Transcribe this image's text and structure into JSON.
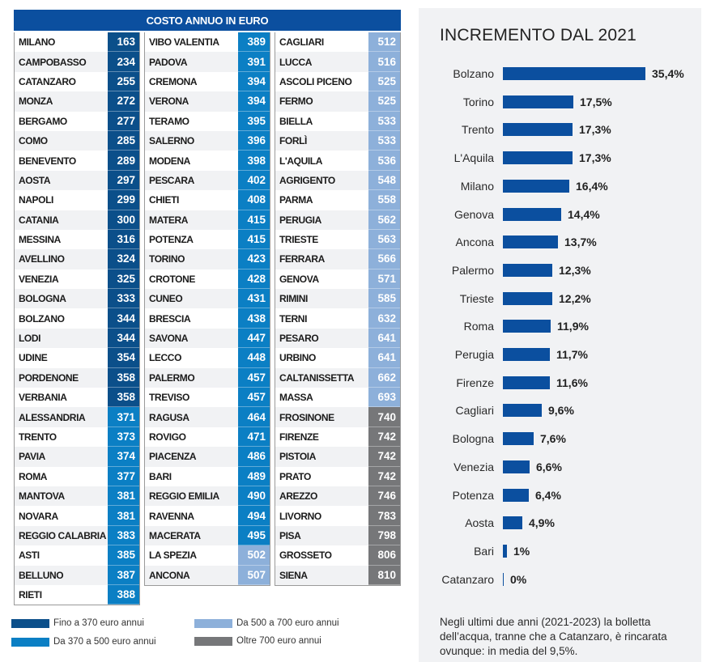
{
  "table": {
    "title": "COSTO ANNUO IN EURO",
    "colors": {
      "fino_370": "#0b4f8a",
      "da_370_500": "#0b7fc4",
      "da_500_700": "#8db0da",
      "oltre_700": "#767779"
    },
    "columns": [
      [
        {
          "city": "MILANO",
          "value": 163,
          "band": "fino_370"
        },
        {
          "city": "CAMPOBASSO",
          "value": 234,
          "band": "fino_370"
        },
        {
          "city": "CATANZARO",
          "value": 255,
          "band": "fino_370"
        },
        {
          "city": "MONZA",
          "value": 272,
          "band": "fino_370"
        },
        {
          "city": "BERGAMO",
          "value": 277,
          "band": "fino_370"
        },
        {
          "city": "COMO",
          "value": 285,
          "band": "fino_370"
        },
        {
          "city": "BENEVENTO",
          "value": 289,
          "band": "fino_370"
        },
        {
          "city": "AOSTA",
          "value": 297,
          "band": "fino_370"
        },
        {
          "city": "NAPOLI",
          "value": 299,
          "band": "fino_370"
        },
        {
          "city": "CATANIA",
          "value": 300,
          "band": "fino_370"
        },
        {
          "city": "MESSINA",
          "value": 316,
          "band": "fino_370"
        },
        {
          "city": "AVELLINO",
          "value": 324,
          "band": "fino_370"
        },
        {
          "city": "VENEZIA",
          "value": 325,
          "band": "fino_370"
        },
        {
          "city": "BOLOGNA",
          "value": 333,
          "band": "fino_370"
        },
        {
          "city": "BOLZANO",
          "value": 344,
          "band": "fino_370"
        },
        {
          "city": "LODI",
          "value": 344,
          "band": "fino_370"
        },
        {
          "city": "UDINE",
          "value": 354,
          "band": "fino_370"
        },
        {
          "city": "PORDENONE",
          "value": 358,
          "band": "fino_370"
        },
        {
          "city": "VERBANIA",
          "value": 358,
          "band": "fino_370"
        },
        {
          "city": "ALESSANDRIA",
          "value": 371,
          "band": "da_370_500"
        },
        {
          "city": "TRENTO",
          "value": 373,
          "band": "da_370_500"
        },
        {
          "city": "PAVIA",
          "value": 374,
          "band": "da_370_500"
        },
        {
          "city": "ROMA",
          "value": 377,
          "band": "da_370_500"
        },
        {
          "city": "MANTOVA",
          "value": 381,
          "band": "da_370_500"
        },
        {
          "city": "NOVARA",
          "value": 381,
          "band": "da_370_500"
        },
        {
          "city": "REGGIO CALABRIA",
          "value": 383,
          "band": "da_370_500"
        },
        {
          "city": "ASTI",
          "value": 385,
          "band": "da_370_500"
        },
        {
          "city": "BELLUNO",
          "value": 387,
          "band": "da_370_500"
        },
        {
          "city": "RIETI",
          "value": 388,
          "band": "da_370_500"
        }
      ],
      [
        {
          "city": "VIBO VALENTIA",
          "value": 389,
          "band": "da_370_500"
        },
        {
          "city": "PADOVA",
          "value": 391,
          "band": "da_370_500"
        },
        {
          "city": "CREMONA",
          "value": 394,
          "band": "da_370_500"
        },
        {
          "city": "VERONA",
          "value": 394,
          "band": "da_370_500"
        },
        {
          "city": "TERAMO",
          "value": 395,
          "band": "da_370_500"
        },
        {
          "city": "SALERNO",
          "value": 396,
          "band": "da_370_500"
        },
        {
          "city": "MODENA",
          "value": 398,
          "band": "da_370_500"
        },
        {
          "city": "PESCARA",
          "value": 402,
          "band": "da_370_500"
        },
        {
          "city": "CHIETI",
          "value": 408,
          "band": "da_370_500"
        },
        {
          "city": "MATERA",
          "value": 415,
          "band": "da_370_500"
        },
        {
          "city": "POTENZA",
          "value": 415,
          "band": "da_370_500"
        },
        {
          "city": "TORINO",
          "value": 423,
          "band": "da_370_500"
        },
        {
          "city": "CROTONE",
          "value": 428,
          "band": "da_370_500"
        },
        {
          "city": "CUNEO",
          "value": 431,
          "band": "da_370_500"
        },
        {
          "city": "BRESCIA",
          "value": 438,
          "band": "da_370_500"
        },
        {
          "city": "SAVONA",
          "value": 447,
          "band": "da_370_500"
        },
        {
          "city": "LECCO",
          "value": 448,
          "band": "da_370_500"
        },
        {
          "city": "PALERMO",
          "value": 457,
          "band": "da_370_500"
        },
        {
          "city": "TREVISO",
          "value": 457,
          "band": "da_370_500"
        },
        {
          "city": "RAGUSA",
          "value": 464,
          "band": "da_370_500"
        },
        {
          "city": "ROVIGO",
          "value": 471,
          "band": "da_370_500"
        },
        {
          "city": "PIACENZA",
          "value": 486,
          "band": "da_370_500"
        },
        {
          "city": "BARI",
          "value": 489,
          "band": "da_370_500"
        },
        {
          "city": "REGGIO EMILIA",
          "value": 490,
          "band": "da_370_500"
        },
        {
          "city": "RAVENNA",
          "value": 494,
          "band": "da_370_500"
        },
        {
          "city": "MACERATA",
          "value": 495,
          "band": "da_370_500"
        },
        {
          "city": "LA SPEZIA",
          "value": 502,
          "band": "da_500_700"
        },
        {
          "city": "ANCONA",
          "value": 507,
          "band": "da_500_700"
        }
      ],
      [
        {
          "city": "CAGLIARI",
          "value": 512,
          "band": "da_500_700"
        },
        {
          "city": "LUCCA",
          "value": 516,
          "band": "da_500_700"
        },
        {
          "city": "ASCOLI PICENO",
          "value": 525,
          "band": "da_500_700"
        },
        {
          "city": "FERMO",
          "value": 525,
          "band": "da_500_700"
        },
        {
          "city": "BIELLA",
          "value": 533,
          "band": "da_500_700"
        },
        {
          "city": "FORLÌ",
          "value": 533,
          "band": "da_500_700"
        },
        {
          "city": "L'AQUILA",
          "value": 536,
          "band": "da_500_700"
        },
        {
          "city": "AGRIGENTO",
          "value": 548,
          "band": "da_500_700"
        },
        {
          "city": "PARMA",
          "value": 558,
          "band": "da_500_700"
        },
        {
          "city": "PERUGIA",
          "value": 562,
          "band": "da_500_700"
        },
        {
          "city": "TRIESTE",
          "value": 563,
          "band": "da_500_700"
        },
        {
          "city": "FERRARA",
          "value": 566,
          "band": "da_500_700"
        },
        {
          "city": "GENOVA",
          "value": 571,
          "band": "da_500_700"
        },
        {
          "city": "RIMINI",
          "value": 585,
          "band": "da_500_700"
        },
        {
          "city": "TERNI",
          "value": 632,
          "band": "da_500_700"
        },
        {
          "city": "PESARO",
          "value": 641,
          "band": "da_500_700"
        },
        {
          "city": "URBINO",
          "value": 641,
          "band": "da_500_700"
        },
        {
          "city": "CALTANISSETTA",
          "value": 662,
          "band": "da_500_700"
        },
        {
          "city": "MASSA",
          "value": 693,
          "band": "da_500_700"
        },
        {
          "city": "FROSINONE",
          "value": 740,
          "band": "oltre_700"
        },
        {
          "city": "FIRENZE",
          "value": 742,
          "band": "oltre_700"
        },
        {
          "city": "PISTOIA",
          "value": 742,
          "band": "oltre_700"
        },
        {
          "city": "PRATO",
          "value": 742,
          "band": "oltre_700"
        },
        {
          "city": "AREZZO",
          "value": 746,
          "band": "oltre_700"
        },
        {
          "city": "LIVORNO",
          "value": 783,
          "band": "oltre_700"
        },
        {
          "city": "PISA",
          "value": 798,
          "band": "oltre_700"
        },
        {
          "city": "GROSSETO",
          "value": 806,
          "band": "oltre_700"
        },
        {
          "city": "SIENA",
          "value": 810,
          "band": "oltre_700"
        }
      ]
    ]
  },
  "legend": [
    {
      "band": "fino_370",
      "label": "Fino a 370 euro annui"
    },
    {
      "band": "da_370_500",
      "label": "Da 370 a 500 euro annui"
    },
    {
      "band": "da_500_700",
      "label": "Da 500 a 700 euro annui"
    },
    {
      "band": "oltre_700",
      "label": "Oltre 700 euro annui"
    }
  ],
  "chart_data": {
    "type": "bar",
    "orientation": "horizontal",
    "title": "INCREMENTO DAL 2021",
    "xlabel": "",
    "ylabel": "",
    "unit": "%",
    "xlim": [
      0,
      35.4
    ],
    "grid": false,
    "bar_color": "#0b4f9f",
    "categories": [
      "Bolzano",
      "Torino",
      "Trento",
      "L'Aquila",
      "Milano",
      "Genova",
      "Ancona",
      "Palermo",
      "Trieste",
      "Roma",
      "Perugia",
      "Firenze",
      "Cagliari",
      "Bologna",
      "Venezia",
      "Potenza",
      "Aosta",
      "Bari",
      "Catanzaro"
    ],
    "values": [
      35.4,
      17.5,
      17.3,
      17.3,
      16.4,
      14.4,
      13.7,
      12.3,
      12.2,
      11.9,
      11.7,
      11.6,
      9.6,
      7.6,
      6.6,
      6.4,
      4.9,
      1,
      0
    ],
    "value_labels": [
      "35,4%",
      "17,5%",
      "17,3%",
      "17,3%",
      "16,4%",
      "14,4%",
      "13,7%",
      "12,3%",
      "12,2%",
      "11,9%",
      "11,7%",
      "11,6%",
      "9,6%",
      "7,6%",
      "6,6%",
      "6,4%",
      "4,9%",
      "1%",
      "0%"
    ],
    "note": "Negli ultimi due anni (2021-2023) la bolletta dell’acqua, tranne che a Catanzaro, è rincarata ovunque: in media del 9,5%."
  }
}
